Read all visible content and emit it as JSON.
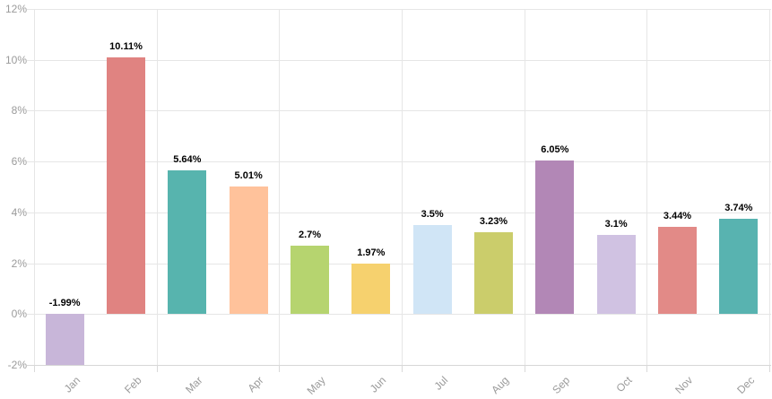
{
  "chart_data": {
    "type": "bar",
    "title": "",
    "xlabel": "",
    "ylabel": "",
    "legend": "none",
    "grid": true,
    "categories": [
      "Jan",
      "Feb",
      "Mar",
      "Apr",
      "May",
      "Jun",
      "Jul",
      "Aug",
      "Sep",
      "Oct",
      "Nov",
      "Dec"
    ],
    "values": [
      -1.99,
      10.11,
      5.64,
      5.01,
      2.7,
      1.97,
      3.5,
      3.23,
      6.05,
      3.1,
      3.44,
      3.74
    ],
    "value_labels": [
      "-1.99%",
      "10.11%",
      "5.64%",
      "5.01%",
      "2.7%",
      "1.97%",
      "3.5%",
      "3.23%",
      "6.05%",
      "3.1%",
      "3.44%",
      "3.74%"
    ],
    "bar_colors": [
      "#c8b6d9",
      "#e08381",
      "#57b4ae",
      "#ffc29b",
      "#b6d46f",
      "#f6d16e",
      "#d0e5f6",
      "#cbcd6b",
      "#b287b6",
      "#d0c2e2",
      "#e28a87",
      "#58b3b0"
    ],
    "ylim": [
      -2,
      12
    ],
    "ytick_step": 2,
    "ytick_labels": [
      "-2%",
      "0%",
      "2%",
      "4%",
      "6%",
      "8%",
      "10%",
      "12%"
    ],
    "colors": {
      "grid_line": "#e6e6e6",
      "axis_line": "#d6d6d6",
      "tick_label": "#9b9b9b",
      "data_label": "#000000",
      "background": "#ffffff"
    }
  }
}
